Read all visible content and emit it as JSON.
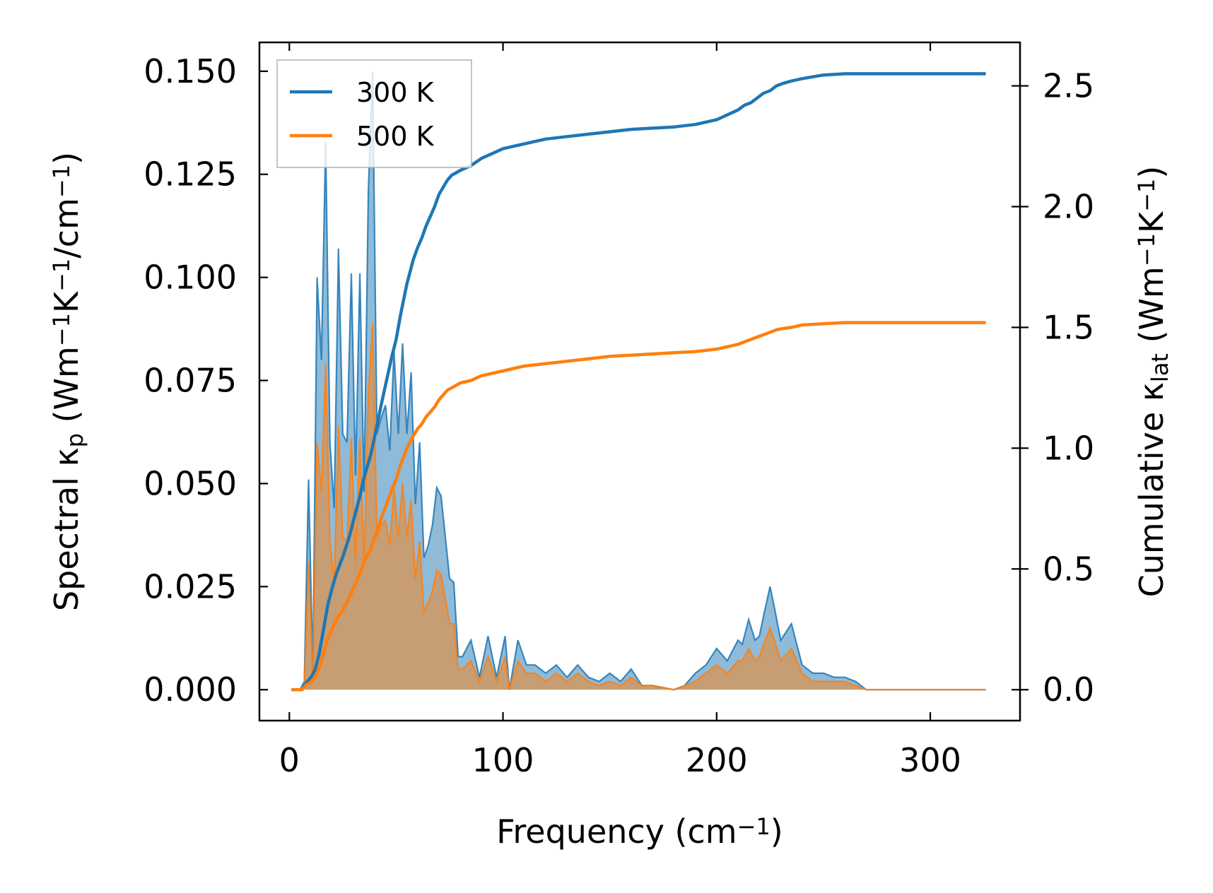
{
  "chart_data": {
    "type": "line",
    "xlabel": "Frequency (cm",
    "xlabel_sup": "−1",
    "xlabel_end": ")",
    "ylabel_left_parts": [
      "Spectral κ",
      "p",
      " (Wm",
      "−1",
      "K",
      "−1",
      "/cm",
      "−1",
      ")"
    ],
    "ylabel_right_parts": [
      "Cumulative κ",
      "lat",
      " (Wm",
      "−1",
      "K",
      "−1",
      ")"
    ],
    "xlim": [
      -14,
      342
    ],
    "ylim_left": [
      -0.0075,
      0.157
    ],
    "ylim_right": [
      -0.128,
      2.68
    ],
    "x_ticks": [
      0,
      100,
      200,
      300
    ],
    "x_tick_labels": [
      "0",
      "100",
      "200",
      "300"
    ],
    "y_left_ticks": [
      0.0,
      0.025,
      0.05,
      0.075,
      0.1,
      0.125,
      0.15
    ],
    "y_left_tick_labels": [
      "0.000",
      "0.025",
      "0.050",
      "0.075",
      "0.100",
      "0.125",
      "0.150"
    ],
    "y_right_ticks": [
      0.0,
      0.5,
      1.0,
      1.5,
      2.0,
      2.5
    ],
    "y_right_tick_labels": [
      "0.0",
      "0.5",
      "1.0",
      "1.5",
      "2.0",
      "2.5"
    ],
    "legend": {
      "position": "top-left",
      "entries": [
        "300 K",
        "500 K"
      ]
    },
    "colors": {
      "300 K": "#1f77b4",
      "500 K": "#ff7f0e",
      "spectral_fill_300": "#1f77b4",
      "spectral_fill_500": "#ff7f0e"
    },
    "spectral": {
      "x": [
        1,
        5,
        7,
        9,
        11,
        13,
        15,
        17,
        19,
        21,
        23,
        25,
        27,
        29,
        31,
        33,
        35,
        37,
        39,
        41,
        43,
        45,
        47,
        49,
        51,
        53,
        55,
        57,
        59,
        61,
        63,
        65,
        67,
        69,
        71,
        73,
        75,
        77,
        79,
        81,
        85,
        89,
        93,
        97,
        101,
        103,
        107,
        111,
        115,
        120,
        125,
        130,
        135,
        140,
        145,
        150,
        155,
        160,
        165,
        170,
        180,
        185,
        190,
        195,
        200,
        205,
        210,
        212,
        215,
        218,
        220,
        222,
        225,
        227,
        230,
        235,
        240,
        245,
        250,
        255,
        260,
        265,
        270,
        280,
        300,
        326
      ],
      "300 K": [
        0,
        0,
        0.002,
        0.051,
        0.004,
        0.1,
        0.08,
        0.133,
        0.06,
        0.044,
        0.107,
        0.062,
        0.06,
        0.101,
        0.052,
        0.101,
        0.048,
        0.121,
        0.15,
        0.062,
        0.066,
        0.069,
        0.058,
        0.082,
        0.062,
        0.084,
        0.062,
        0.077,
        0.045,
        0.06,
        0.032,
        0.035,
        0.04,
        0.049,
        0.047,
        0.037,
        0.027,
        0.026,
        0.008,
        0.008,
        0.012,
        0.003,
        0.013,
        0.003,
        0.013,
        0.0,
        0.012,
        0.006,
        0.006,
        0.004,
        0.006,
        0.003,
        0.006,
        0.003,
        0.002,
        0.004,
        0.002,
        0.005,
        0.001,
        0.001,
        0.0,
        0.001,
        0.004,
        0.006,
        0.01,
        0.007,
        0.012,
        0.011,
        0.017,
        0.012,
        0.013,
        0.018,
        0.025,
        0.02,
        0.012,
        0.016,
        0.006,
        0.004,
        0.004,
        0.003,
        0.003,
        0.002,
        0.0,
        0,
        0,
        0
      ],
      "500 K": [
        0,
        0,
        0.001,
        0.031,
        0.002,
        0.06,
        0.048,
        0.079,
        0.036,
        0.026,
        0.064,
        0.037,
        0.036,
        0.061,
        0.031,
        0.061,
        0.03,
        0.072,
        0.089,
        0.037,
        0.04,
        0.041,
        0.035,
        0.049,
        0.037,
        0.05,
        0.037,
        0.046,
        0.027,
        0.036,
        0.019,
        0.021,
        0.024,
        0.029,
        0.028,
        0.022,
        0.016,
        0.016,
        0.005,
        0.005,
        0.007,
        0.002,
        0.008,
        0.002,
        0.008,
        0.0,
        0.007,
        0.004,
        0.004,
        0.002,
        0.004,
        0.002,
        0.004,
        0.002,
        0.001,
        0.002,
        0.001,
        0.003,
        0.001,
        0.001,
        0.0,
        0.001,
        0.002,
        0.004,
        0.006,
        0.004,
        0.007,
        0.007,
        0.01,
        0.007,
        0.008,
        0.011,
        0.015,
        0.012,
        0.007,
        0.01,
        0.004,
        0.002,
        0.002,
        0.002,
        0.002,
        0.001,
        0.0,
        0,
        0,
        0
      ]
    },
    "cumulative": {
      "x": [
        1,
        6,
        8,
        10,
        12,
        14,
        16,
        18,
        20,
        22,
        25,
        28,
        30,
        33,
        35,
        38,
        40,
        43,
        46,
        48,
        50,
        52,
        55,
        58,
        60,
        62,
        64,
        66,
        68,
        70,
        72,
        74,
        76,
        78,
        80,
        85,
        90,
        95,
        100,
        110,
        120,
        130,
        140,
        150,
        160,
        170,
        180,
        190,
        195,
        200,
        205,
        210,
        213,
        216,
        219,
        222,
        225,
        228,
        231,
        235,
        240,
        250,
        260,
        270,
        280,
        326
      ],
      "300 K": [
        0,
        0,
        0.03,
        0.05,
        0.08,
        0.15,
        0.25,
        0.35,
        0.42,
        0.48,
        0.55,
        0.63,
        0.7,
        0.8,
        0.88,
        0.97,
        1.05,
        1.18,
        1.3,
        1.38,
        1.45,
        1.55,
        1.68,
        1.78,
        1.83,
        1.87,
        1.92,
        1.96,
        2.0,
        2.05,
        2.08,
        2.11,
        2.13,
        2.14,
        2.15,
        2.17,
        2.2,
        2.22,
        2.24,
        2.26,
        2.28,
        2.29,
        2.3,
        2.31,
        2.32,
        2.325,
        2.33,
        2.34,
        2.35,
        2.36,
        2.38,
        2.4,
        2.42,
        2.43,
        2.45,
        2.47,
        2.48,
        2.5,
        2.51,
        2.52,
        2.53,
        2.545,
        2.55,
        2.55,
        2.55,
        2.55
      ],
      "500 K": [
        0,
        0,
        0.02,
        0.03,
        0.05,
        0.09,
        0.15,
        0.21,
        0.25,
        0.29,
        0.33,
        0.38,
        0.42,
        0.48,
        0.53,
        0.58,
        0.63,
        0.71,
        0.78,
        0.83,
        0.87,
        0.93,
        1.0,
        1.05,
        1.08,
        1.1,
        1.13,
        1.15,
        1.17,
        1.2,
        1.22,
        1.24,
        1.25,
        1.26,
        1.27,
        1.28,
        1.3,
        1.31,
        1.32,
        1.34,
        1.35,
        1.36,
        1.37,
        1.38,
        1.385,
        1.39,
        1.395,
        1.4,
        1.405,
        1.41,
        1.42,
        1.43,
        1.44,
        1.45,
        1.46,
        1.47,
        1.48,
        1.49,
        1.495,
        1.5,
        1.51,
        1.515,
        1.52,
        1.52,
        1.52,
        1.52
      ]
    }
  }
}
